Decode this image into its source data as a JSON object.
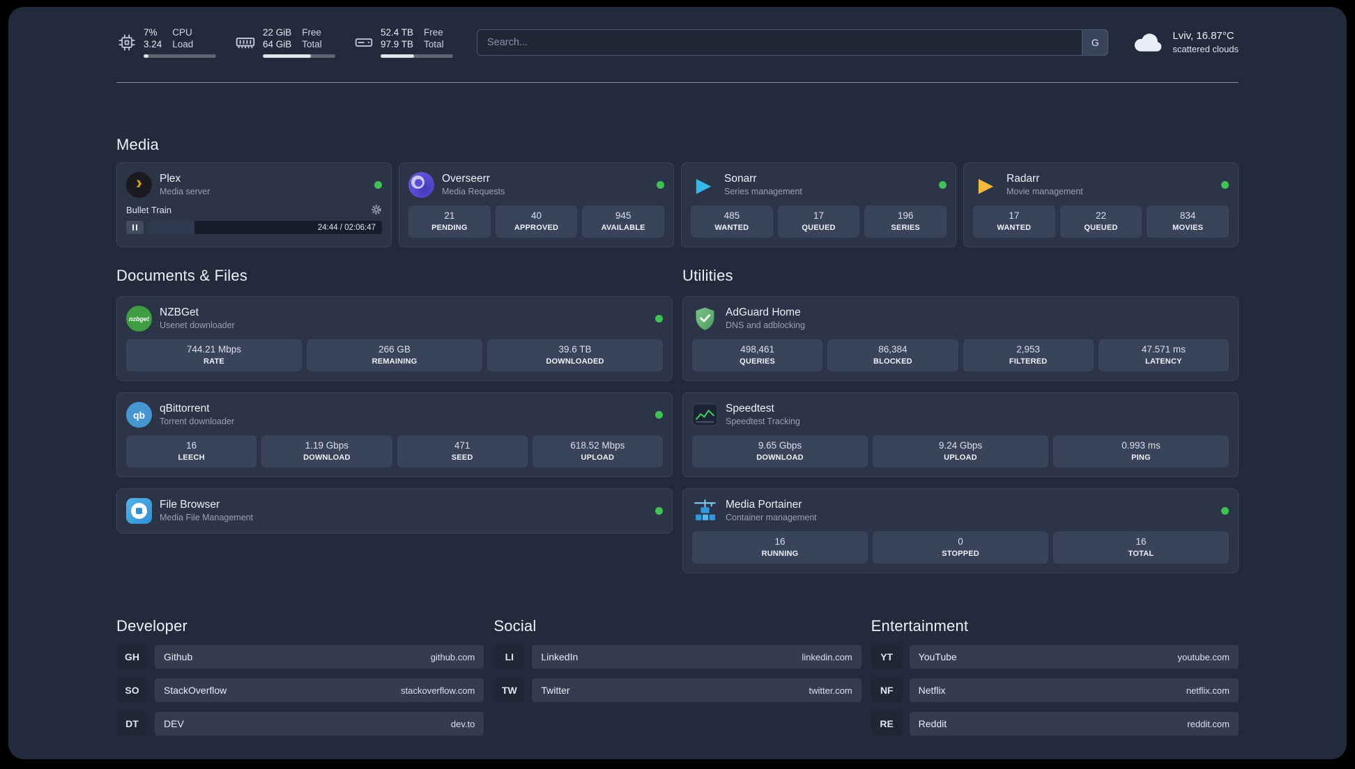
{
  "colors": {
    "page_bg": "#222b3c",
    "card_bg": "#2c3547",
    "stat_bg": "#39435a",
    "status_online": "#40c057",
    "plex_accent": "#e5a00d",
    "sonarr_accent": "#35b8e8",
    "radarr_accent": "#f6b93c",
    "adguard_green": "#5aa86c",
    "portainer_blue": "#2f9ae0"
  },
  "icons": {
    "plex_glyph": "›",
    "sonarr_glyph": "▶",
    "radarr_glyph": "▶",
    "nzbget_glyph": "nzbget",
    "qbittorrent_glyph": "qb"
  },
  "topbar": {
    "cpu": {
      "value_top": "7%",
      "value_bottom": "3.24",
      "label_top": "CPU",
      "label_bottom": "Load",
      "fill_pct": 7
    },
    "ram": {
      "value_top": "22 GiB",
      "value_bottom": "64 GiB",
      "label_top": "Free",
      "label_bottom": "Total",
      "fill_pct": 66
    },
    "disk": {
      "value_top": "52.4 TB",
      "value_bottom": "97.9 TB",
      "label_top": "Free",
      "label_bottom": "Total",
      "fill_pct": 46
    },
    "search": {
      "placeholder": "Search...",
      "button_label": "G"
    },
    "weather": {
      "location": "Lviv, 16.87°C",
      "condition": "scattered clouds"
    }
  },
  "sections": {
    "media": {
      "title": "Media",
      "cards": [
        {
          "name": "Plex",
          "subtitle": "Media server",
          "player": {
            "track": "Bullet Train",
            "time": "24:44 / 02:06:47",
            "progress_pct": 20
          }
        },
        {
          "name": "Overseerr",
          "subtitle": "Media Requests",
          "stats": [
            {
              "value": "21",
              "label": "PENDING"
            },
            {
              "value": "40",
              "label": "APPROVED"
            },
            {
              "value": "945",
              "label": "AVAILABLE"
            }
          ]
        },
        {
          "name": "Sonarr",
          "subtitle": "Series management",
          "stats": [
            {
              "value": "485",
              "label": "WANTED"
            },
            {
              "value": "17",
              "label": "QUEUED"
            },
            {
              "value": "196",
              "label": "SERIES"
            }
          ]
        },
        {
          "name": "Radarr",
          "subtitle": "Movie management",
          "stats": [
            {
              "value": "17",
              "label": "WANTED"
            },
            {
              "value": "22",
              "label": "QUEUED"
            },
            {
              "value": "834",
              "label": "MOVIES"
            }
          ]
        }
      ]
    },
    "documents": {
      "title": "Documents & Files",
      "cards": [
        {
          "name": "NZBGet",
          "subtitle": "Usenet downloader",
          "stats": [
            {
              "value": "744.21 Mbps",
              "label": "RATE"
            },
            {
              "value": "266 GB",
              "label": "REMAINING"
            },
            {
              "value": "39.6 TB",
              "label": "DOWNLOADED"
            }
          ]
        },
        {
          "name": "qBittorrent",
          "subtitle": "Torrent downloader",
          "stats": [
            {
              "value": "16",
              "label": "LEECH"
            },
            {
              "value": "1.19 Gbps",
              "label": "DOWNLOAD"
            },
            {
              "value": "471",
              "label": "SEED"
            },
            {
              "value": "618.52 Mbps",
              "label": "UPLOAD"
            }
          ]
        },
        {
          "name": "File Browser",
          "subtitle": "Media File Management"
        }
      ]
    },
    "utilities": {
      "title": "Utilities",
      "cards": [
        {
          "name": "AdGuard Home",
          "subtitle": "DNS and adblocking",
          "stats": [
            {
              "value": "498,461",
              "label": "QUERIES"
            },
            {
              "value": "86,384",
              "label": "BLOCKED"
            },
            {
              "value": "2,953",
              "label": "FILTERED"
            },
            {
              "value": "47.571 ms",
              "label": "LATENCY"
            }
          ]
        },
        {
          "name": "Speedtest",
          "subtitle": "Speedtest Tracking",
          "stats": [
            {
              "value": "9.65 Gbps",
              "label": "DOWNLOAD"
            },
            {
              "value": "9.24 Gbps",
              "label": "UPLOAD"
            },
            {
              "value": "0.993 ms",
              "label": "PING"
            }
          ]
        },
        {
          "name": "Media Portainer",
          "subtitle": "Container management",
          "stats": [
            {
              "value": "16",
              "label": "RUNNING"
            },
            {
              "value": "0",
              "label": "STOPPED"
            },
            {
              "value": "16",
              "label": "TOTAL"
            }
          ]
        }
      ]
    },
    "developer": {
      "title": "Developer",
      "bookmarks": [
        {
          "abbr": "GH",
          "name": "Github",
          "url": "github.com"
        },
        {
          "abbr": "SO",
          "name": "StackOverflow",
          "url": "stackoverflow.com"
        },
        {
          "abbr": "DT",
          "name": "DEV",
          "url": "dev.to"
        }
      ]
    },
    "social": {
      "title": "Social",
      "bookmarks": [
        {
          "abbr": "LI",
          "name": "LinkedIn",
          "url": "linkedin.com"
        },
        {
          "abbr": "TW",
          "name": "Twitter",
          "url": "twitter.com"
        }
      ]
    },
    "entertainment": {
      "title": "Entertainment",
      "bookmarks": [
        {
          "abbr": "YT",
          "name": "YouTube",
          "url": "youtube.com"
        },
        {
          "abbr": "NF",
          "name": "Netflix",
          "url": "netflix.com"
        },
        {
          "abbr": "RE",
          "name": "Reddit",
          "url": "reddit.com"
        }
      ]
    }
  }
}
